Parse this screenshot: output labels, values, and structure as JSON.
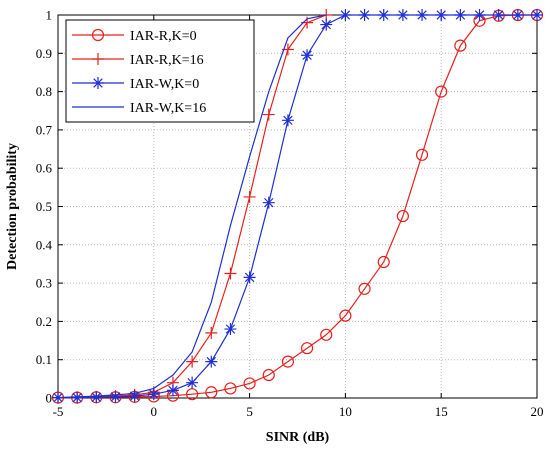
{
  "chart_data": {
    "type": "line",
    "xlabel": "SINR (dB)",
    "ylabel": "Detection probability",
    "xlim": [
      -5,
      20
    ],
    "ylim": [
      0,
      1
    ],
    "xticks": [
      "-5",
      "0",
      "5",
      "10",
      "15",
      "20"
    ],
    "yticks": [
      "0",
      "0.1",
      "0.2",
      "0.3",
      "0.4",
      "0.5",
      "0.6",
      "0.7",
      "0.8",
      "0.9",
      "1"
    ],
    "grid": true,
    "legend_position": "top-left",
    "series": [
      {
        "name": "IAR-R,K=0",
        "color": "#e8201c",
        "marker": "circle",
        "x": [
          -5,
          -4,
          -3,
          -2,
          -1,
          0,
          1,
          2,
          3,
          4,
          5,
          6,
          7,
          8,
          9,
          10,
          11,
          12,
          13,
          14,
          15,
          16,
          17,
          18,
          19,
          20
        ],
        "y": [
          0.001,
          0.001,
          0.002,
          0.002,
          0.003,
          0.004,
          0.006,
          0.01,
          0.015,
          0.025,
          0.038,
          0.06,
          0.095,
          0.13,
          0.165,
          0.215,
          0.285,
          0.355,
          0.475,
          0.635,
          0.8,
          0.92,
          0.985,
          0.998,
          1,
          1
        ]
      },
      {
        "name": "IAR-R,K=16",
        "color": "#e8201c",
        "marker": "plus",
        "x": [
          -5,
          -4,
          -3,
          -2,
          -1,
          0,
          1,
          2,
          3,
          4,
          5,
          6,
          7,
          8,
          9
        ],
        "y": [
          0.001,
          0.002,
          0.003,
          0.005,
          0.008,
          0.015,
          0.04,
          0.095,
          0.17,
          0.325,
          0.525,
          0.74,
          0.91,
          0.98,
          1
        ]
      },
      {
        "name": "IAR-W,K=0",
        "color": "#1f2fd6",
        "marker": "asterisk",
        "x": [
          -5,
          -4,
          -3,
          -2,
          -1,
          0,
          1,
          2,
          3,
          4,
          5,
          6,
          7,
          8,
          9,
          10,
          11,
          12,
          13,
          14,
          15,
          16,
          17,
          18,
          19,
          20
        ],
        "y": [
          0.001,
          0.001,
          0.002,
          0.003,
          0.005,
          0.01,
          0.02,
          0.04,
          0.095,
          0.18,
          0.315,
          0.51,
          0.725,
          0.895,
          0.975,
          1,
          1,
          1,
          1,
          1,
          1,
          1,
          1,
          1,
          1,
          1
        ]
      },
      {
        "name": "IAR-W,K=16",
        "color": "#1f2fd6",
        "marker": "none",
        "x": [
          -5,
          -4,
          -3,
          -2,
          -1,
          0,
          1,
          2,
          3,
          4,
          5,
          6,
          7,
          8,
          9
        ],
        "y": [
          0.001,
          0.003,
          0.005,
          0.008,
          0.012,
          0.025,
          0.06,
          0.12,
          0.25,
          0.45,
          0.63,
          0.8,
          0.94,
          0.99,
          1
        ]
      }
    ]
  }
}
